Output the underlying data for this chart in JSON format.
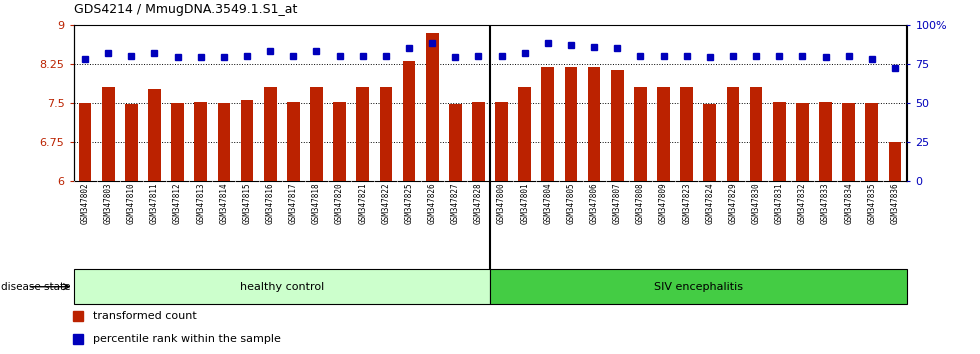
{
  "title": "GDS4214 / MmugDNA.3549.1.S1_at",
  "samples": [
    "GSM347802",
    "GSM347803",
    "GSM347810",
    "GSM347811",
    "GSM347812",
    "GSM347813",
    "GSM347814",
    "GSM347815",
    "GSM347816",
    "GSM347817",
    "GSM347818",
    "GSM347820",
    "GSM347821",
    "GSM347822",
    "GSM347825",
    "GSM347826",
    "GSM347827",
    "GSM347828",
    "GSM347800",
    "GSM347801",
    "GSM347804",
    "GSM347805",
    "GSM347806",
    "GSM347807",
    "GSM347808",
    "GSM347809",
    "GSM347823",
    "GSM347824",
    "GSM347829",
    "GSM347830",
    "GSM347831",
    "GSM347832",
    "GSM347833",
    "GSM347834",
    "GSM347835",
    "GSM347836"
  ],
  "bar_values": [
    7.5,
    7.8,
    7.47,
    7.77,
    7.5,
    7.52,
    7.5,
    7.55,
    7.8,
    7.52,
    7.8,
    7.52,
    7.8,
    7.8,
    8.3,
    8.85,
    7.48,
    7.52,
    7.52,
    7.8,
    8.18,
    8.18,
    8.18,
    8.12,
    7.8,
    7.8,
    7.8,
    7.47,
    7.8,
    7.8,
    7.52,
    7.5,
    7.52,
    7.5,
    7.5,
    6.75
  ],
  "percentile_values": [
    78,
    82,
    80,
    82,
    79,
    79,
    79,
    80,
    83,
    80,
    83,
    80,
    80,
    80,
    85,
    88,
    79,
    80,
    80,
    82,
    88,
    87,
    86,
    85,
    80,
    80,
    80,
    79,
    80,
    80,
    80,
    80,
    79,
    80,
    78,
    72
  ],
  "ylim_left": [
    6.0,
    9.0
  ],
  "ylim_right": [
    0,
    100
  ],
  "yticks_left": [
    6.0,
    6.75,
    7.5,
    8.25,
    9.0
  ],
  "ytick_labels_left": [
    "6",
    "6.75",
    "7.5",
    "8.25",
    "9"
  ],
  "yticks_right": [
    0,
    25,
    50,
    75,
    100
  ],
  "ytick_labels_right": [
    "0",
    "25",
    "50",
    "75",
    "100%"
  ],
  "grid_lines": [
    6.75,
    7.5,
    8.25
  ],
  "bar_color": "#bb2200",
  "dot_color": "#0000bb",
  "healthy_label": "healthy control",
  "siv_label": "SIV encephalitis",
  "healthy_color": "#ccffcc",
  "siv_color": "#44cc44",
  "n_healthy": 18,
  "legend_bar_label": "transformed count",
  "legend_dot_label": "percentile rank within the sample",
  "disease_state_label": "disease state",
  "background_color": "#ffffff",
  "xtick_bg_color": "#cccccc"
}
